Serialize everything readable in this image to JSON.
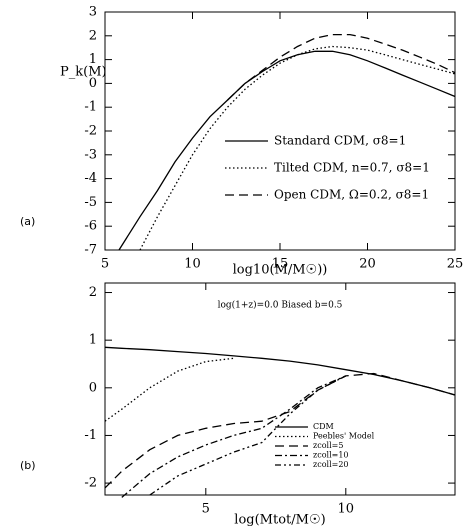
{
  "chart_data": [
    {
      "type": "line",
      "panel_label": "(a)",
      "y_label": "P_k(M)",
      "x_label": "log10(M/M☉))",
      "x": [
        5.8,
        7,
        8,
        9,
        10,
        11,
        12,
        13,
        14,
        15,
        16,
        17,
        18,
        19,
        20,
        21,
        22,
        23,
        24,
        25
      ],
      "series": [
        {
          "name": "Standard CDM, σ8=1",
          "color": "#000000",
          "dash": "solid",
          "values": [
            -7,
            -5.6,
            -4.5,
            -3.3,
            -2.3,
            -1.4,
            -0.7,
            0,
            0.5,
            0.95,
            1.2,
            1.35,
            1.35,
            1.2,
            0.95,
            0.65,
            0.35,
            0.05,
            -0.25,
            -0.55
          ]
        },
        {
          "name": "Tilted CDM, n=0.7, σ8=1",
          "color": "#000000",
          "dash": "dotted",
          "values": [
            null,
            -7,
            -5.6,
            -4.3,
            -3.0,
            -1.9,
            -1.0,
            -0.25,
            0.35,
            0.85,
            1.2,
            1.45,
            1.55,
            1.5,
            1.4,
            1.2,
            1.0,
            0.8,
            0.6,
            0.4
          ]
        },
        {
          "name": "Open CDM, Ω=0.2, σ8=1",
          "color": "#000000",
          "dash": "dashed",
          "values": [
            null,
            null,
            null,
            null,
            null,
            null,
            -0.7,
            0,
            0.55,
            1.1,
            1.55,
            1.9,
            2.05,
            2.05,
            1.9,
            1.65,
            1.4,
            1.1,
            0.8,
            0.45
          ]
        }
      ],
      "xlim": [
        5,
        25
      ],
      "ylim": [
        -7,
        3
      ],
      "xticks": [
        5,
        10,
        15,
        20,
        25
      ],
      "yticks": [
        -7,
        -6,
        -5,
        -4,
        -3,
        -2,
        -1,
        0,
        1,
        2,
        3
      ],
      "legend": "lower right"
    },
    {
      "type": "line",
      "panel_label": "(b)",
      "x_label": "log(Mtot/M☉)",
      "annotation": "log(1+z)=0.0  Biased  b=0.5",
      "x": [
        1.4,
        2,
        3,
        4,
        5,
        6,
        7,
        8,
        9,
        10,
        11,
        12,
        13,
        13.9
      ],
      "series": [
        {
          "name": "CDM",
          "color": "#000000",
          "dash": "solid",
          "values": [
            0.85,
            0.83,
            0.8,
            0.76,
            0.72,
            0.67,
            0.62,
            0.56,
            0.48,
            0.38,
            0.28,
            0.15,
            0,
            -0.15
          ]
        },
        {
          "name": "Peebles' Model",
          "color": "#000000",
          "dash": "dotted",
          "values": [
            -0.7,
            -0.45,
            0.0,
            0.35,
            0.55,
            0.62,
            null,
            null,
            null,
            null,
            null,
            null,
            null,
            null
          ]
        },
        {
          "name": "zcoll=5",
          "color": "#000000",
          "dash": "dashed",
          "values": [
            -2.1,
            -1.75,
            -1.3,
            -1.0,
            -0.85,
            -0.75,
            -0.7,
            -0.5,
            -0.05,
            0.25,
            0.3,
            0.15,
            0,
            -0.15
          ]
        },
        {
          "name": "zcoll=10",
          "color": "#000000",
          "dash": "dashdot",
          "values": [
            null,
            -2.3,
            -1.8,
            -1.45,
            -1.2,
            -1.0,
            -0.85,
            -0.45,
            0.0,
            0.25,
            null,
            null,
            null,
            null
          ]
        },
        {
          "name": "zcoll=20",
          "color": "#000000",
          "dash": "dashdotdot",
          "values": [
            null,
            null,
            -2.25,
            -1.85,
            -1.6,
            -1.35,
            -1.15,
            -0.55,
            -0.05,
            0.25,
            null,
            null,
            null,
            null
          ]
        }
      ],
      "xlim": [
        1.4,
        13.9
      ],
      "ylim": [
        -2.25,
        2.2
      ],
      "xticks": [
        5,
        10
      ],
      "yticks": [
        -2,
        -1,
        0,
        1,
        2
      ],
      "legend": "lower right"
    }
  ]
}
